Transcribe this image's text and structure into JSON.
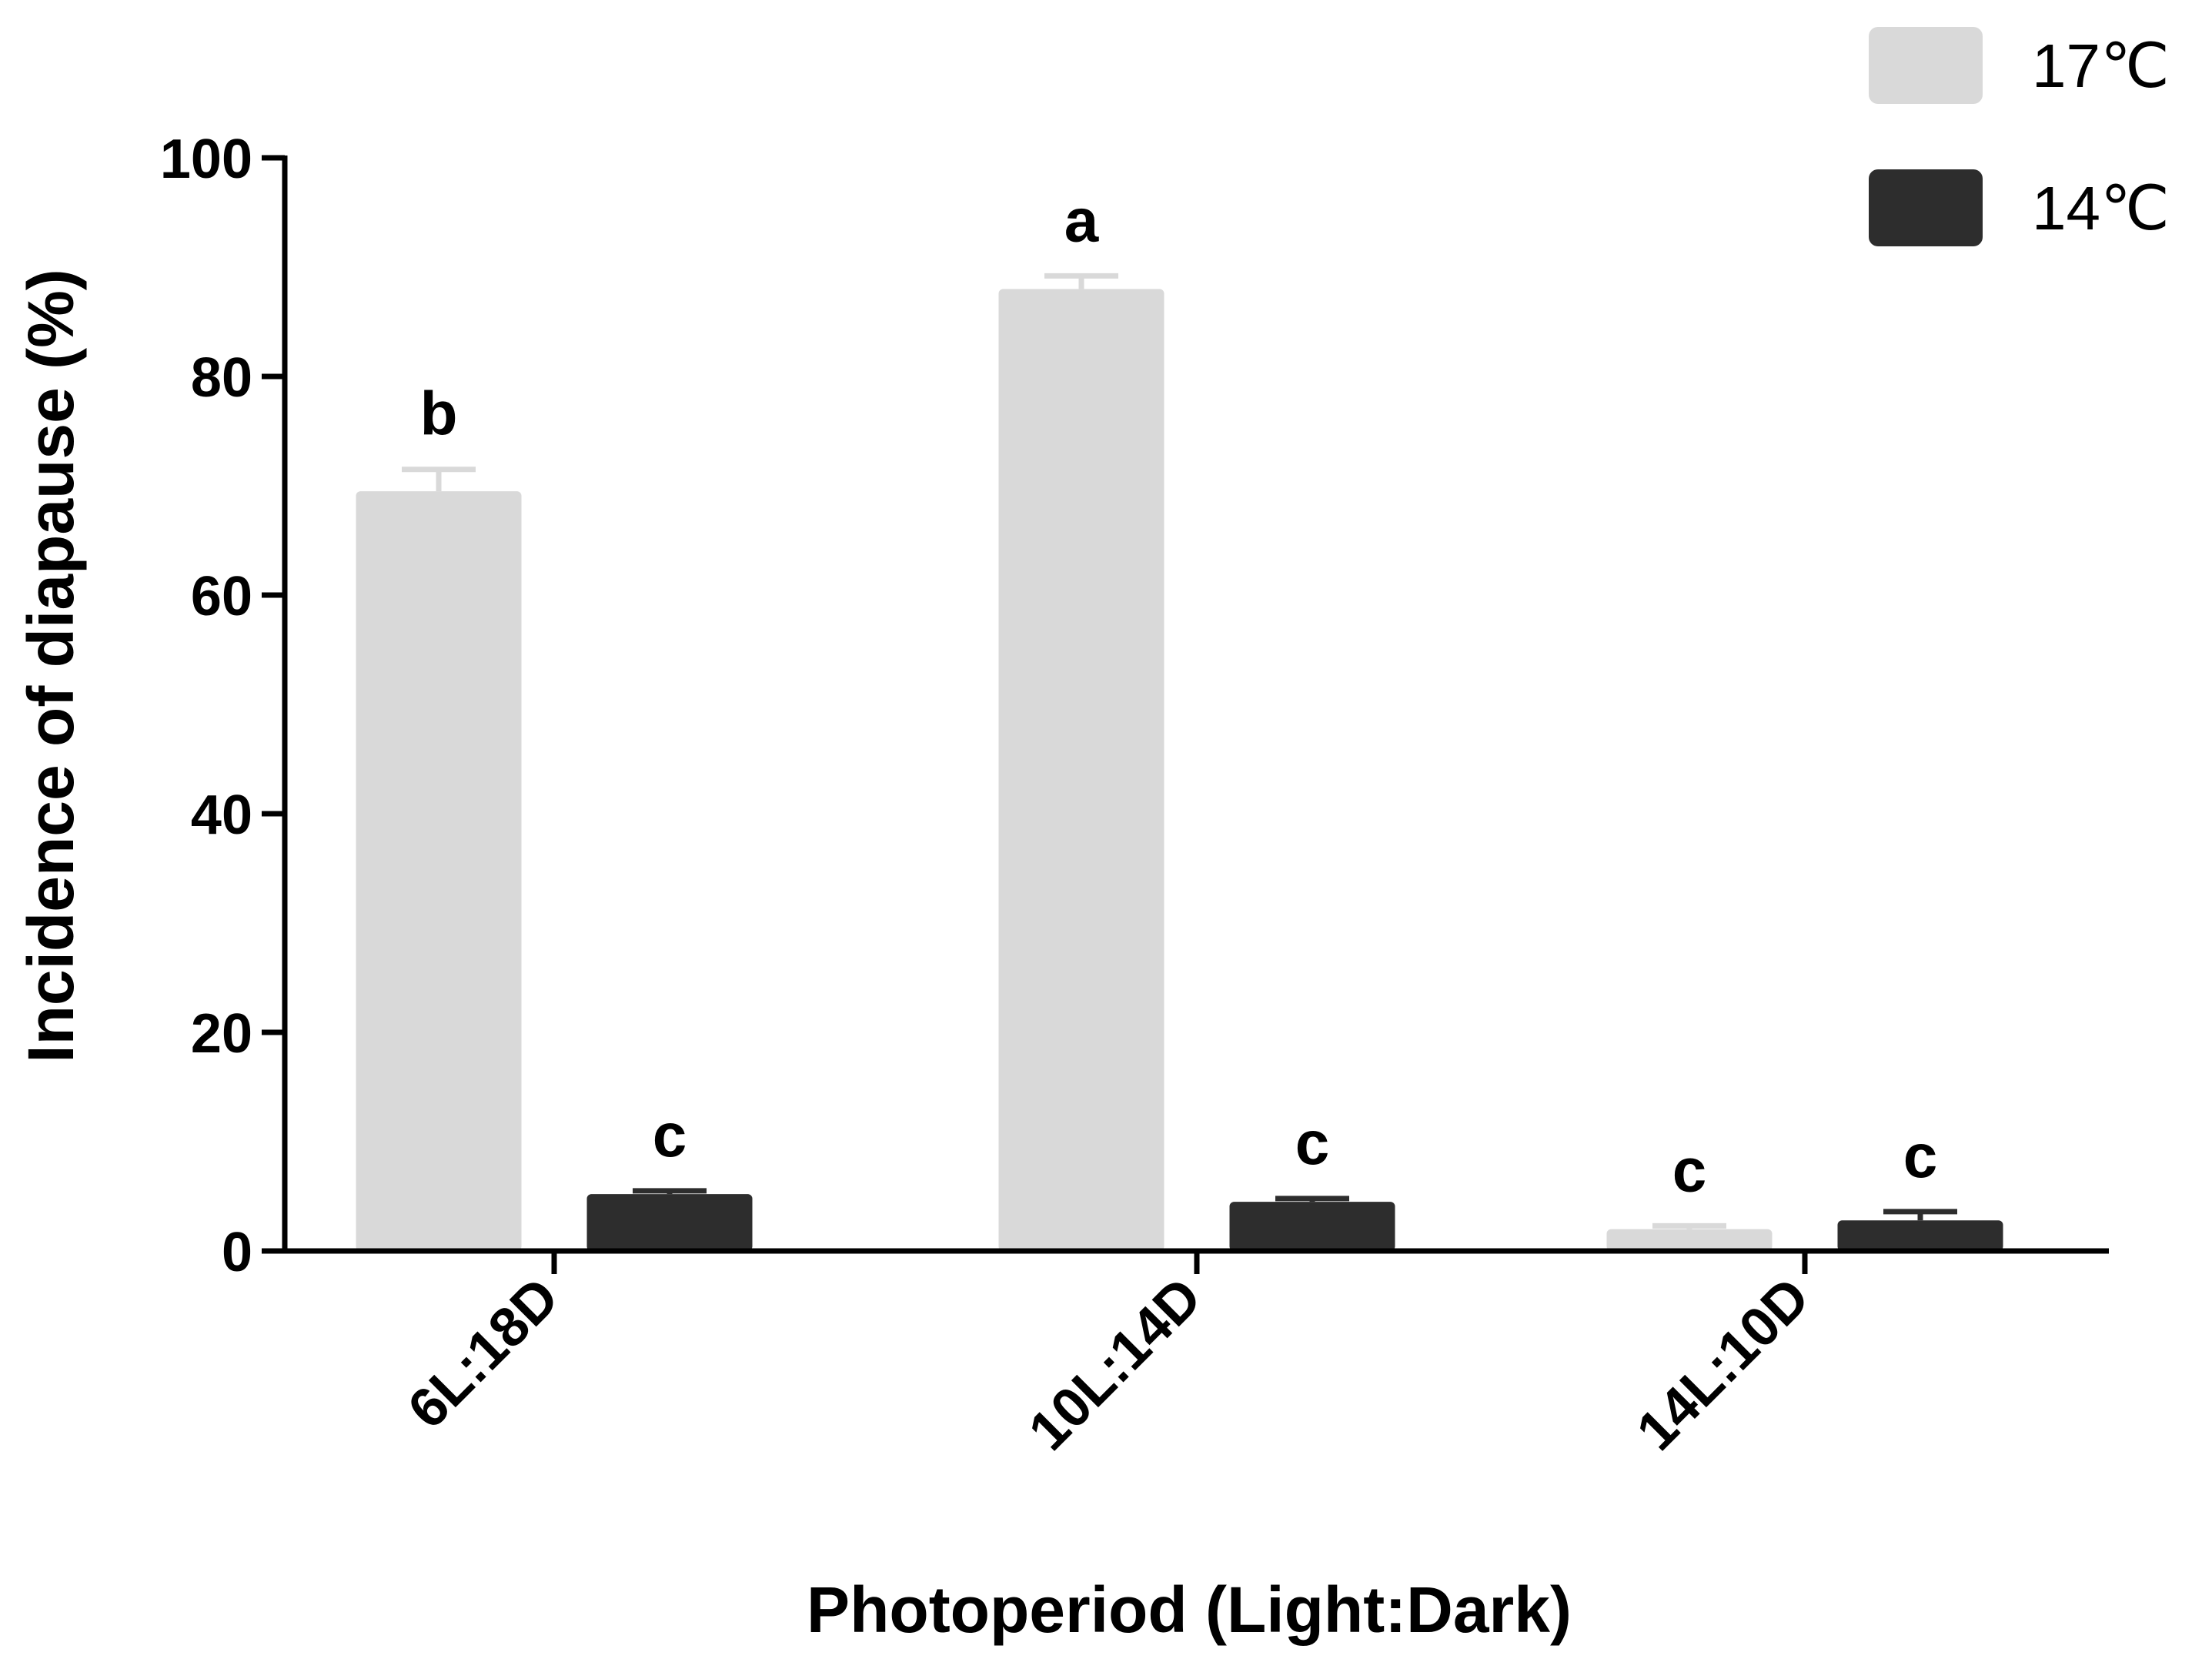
{
  "chart_data": {
    "type": "bar",
    "xlabel": "Photoperiod (Light:Dark)",
    "ylabel": "Incidence of diapause (%)",
    "ylim": [
      0,
      100
    ],
    "yticks": [
      "0",
      "20",
      "40",
      "60",
      "80",
      "100"
    ],
    "categories": [
      "6L:18D",
      "10L:14D",
      "14L:10D"
    ],
    "series": [
      {
        "name": "17℃",
        "color": "#d9d9d9",
        "values": [
          69.5,
          88,
          2
        ],
        "errors": [
          2,
          1.2,
          0.3
        ],
        "labels": [
          "b",
          "a",
          "c"
        ]
      },
      {
        "name": "14℃",
        "color": "#2d2d2d",
        "values": [
          5.2,
          4.5,
          2.8
        ],
        "errors": [
          0.3,
          0.3,
          0.8
        ],
        "labels": [
          "c",
          "c",
          "c"
        ]
      }
    ],
    "legend_position": "top-right",
    "grid": false
  }
}
